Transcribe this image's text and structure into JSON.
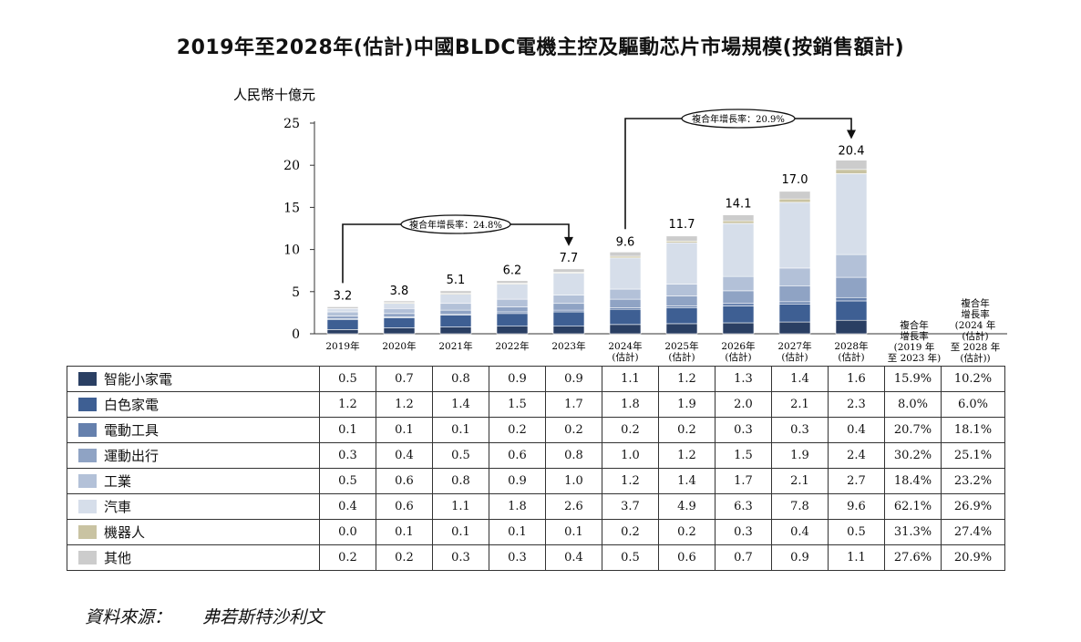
{
  "page": {
    "title": "2019年至2028年(估計)中國BLDC電機主控及驅動芯片市場規模(按銷售額計)",
    "source_label": "資料來源：",
    "source_value": "弗若斯特沙利文"
  },
  "chart_data": {
    "type": "bar",
    "stacked": true,
    "title": "2019年至2028年(估計)中國BLDC電機主控及驅動芯片市場規模(按銷售額計)",
    "ylabel": "人民幣十億元",
    "ylim": [
      0,
      25
    ],
    "yticks": [
      0,
      5,
      10,
      15,
      20,
      25
    ],
    "grid": false,
    "legend": "table-below",
    "categories": [
      [
        "2019年"
      ],
      [
        "2020年"
      ],
      [
        "2021年"
      ],
      [
        "2022年"
      ],
      [
        "2023年"
      ],
      [
        "2024年",
        "(估計)"
      ],
      [
        "2025年",
        "(估計)"
      ],
      [
        "2026年",
        "(估計)"
      ],
      [
        "2027年",
        "(估計)"
      ],
      [
        "2028年",
        "(估計)"
      ]
    ],
    "totals": [
      3.2,
      3.8,
      5.1,
      6.2,
      7.7,
      9.6,
      11.7,
      14.1,
      17.0,
      20.4
    ],
    "series": [
      {
        "name": "智能小家電",
        "color": "#2a3f63",
        "values": [
          0.5,
          0.7,
          0.8,
          0.9,
          0.9,
          1.1,
          1.2,
          1.3,
          1.4,
          1.6
        ],
        "cagr1": "15.9%",
        "cagr2": "10.2%"
      },
      {
        "name": "白色家電",
        "color": "#3e5f93",
        "values": [
          1.2,
          1.2,
          1.4,
          1.5,
          1.7,
          1.8,
          1.9,
          2.0,
          2.1,
          2.3
        ],
        "cagr1": "8.0%",
        "cagr2": "6.0%"
      },
      {
        "name": "電動工具",
        "color": "#6580ad",
        "values": [
          0.1,
          0.1,
          0.1,
          0.2,
          0.2,
          0.2,
          0.2,
          0.3,
          0.3,
          0.4
        ],
        "cagr1": "20.7%",
        "cagr2": "18.1%"
      },
      {
        "name": "運動出行",
        "color": "#8fa3c4",
        "values": [
          0.3,
          0.4,
          0.5,
          0.6,
          0.8,
          1.0,
          1.2,
          1.5,
          1.9,
          2.4
        ],
        "cagr1": "30.2%",
        "cagr2": "25.1%"
      },
      {
        "name": "工業",
        "color": "#b3c1d8",
        "values": [
          0.5,
          0.6,
          0.8,
          0.9,
          1.0,
          1.2,
          1.4,
          1.7,
          2.1,
          2.7
        ],
        "cagr1": "18.4%",
        "cagr2": "23.2%"
      },
      {
        "name": "汽車",
        "color": "#d6deea",
        "values": [
          0.4,
          0.6,
          1.1,
          1.8,
          2.6,
          3.7,
          4.9,
          6.3,
          7.8,
          9.6
        ],
        "cagr1": "62.1%",
        "cagr2": "26.9%"
      },
      {
        "name": "機器人",
        "color": "#c9c3a2",
        "values": [
          0.0,
          0.1,
          0.1,
          0.1,
          0.1,
          0.2,
          0.2,
          0.3,
          0.4,
          0.5
        ],
        "cagr1": "31.3%",
        "cagr2": "27.4%"
      },
      {
        "name": "其他",
        "color": "#cccccc",
        "values": [
          0.2,
          0.2,
          0.3,
          0.3,
          0.4,
          0.5,
          0.6,
          0.7,
          0.9,
          1.1
        ],
        "cagr1": "27.6%",
        "cagr2": "20.9%"
      }
    ],
    "cagr_headers": [
      [
        "複合年",
        "增長率",
        "(2019 年",
        "至 2023 年)"
      ],
      [
        "複合年",
        "增長率",
        "(2024 年",
        "(估計)",
        "至 2028 年",
        "(估計))"
      ]
    ],
    "annotations": [
      {
        "label": "複合年增長率：24.8%",
        "from": "2019年",
        "to": "2023年"
      },
      {
        "label": "複合年增長率：20.9%",
        "from": "2024年",
        "to": "2028年"
      }
    ]
  }
}
